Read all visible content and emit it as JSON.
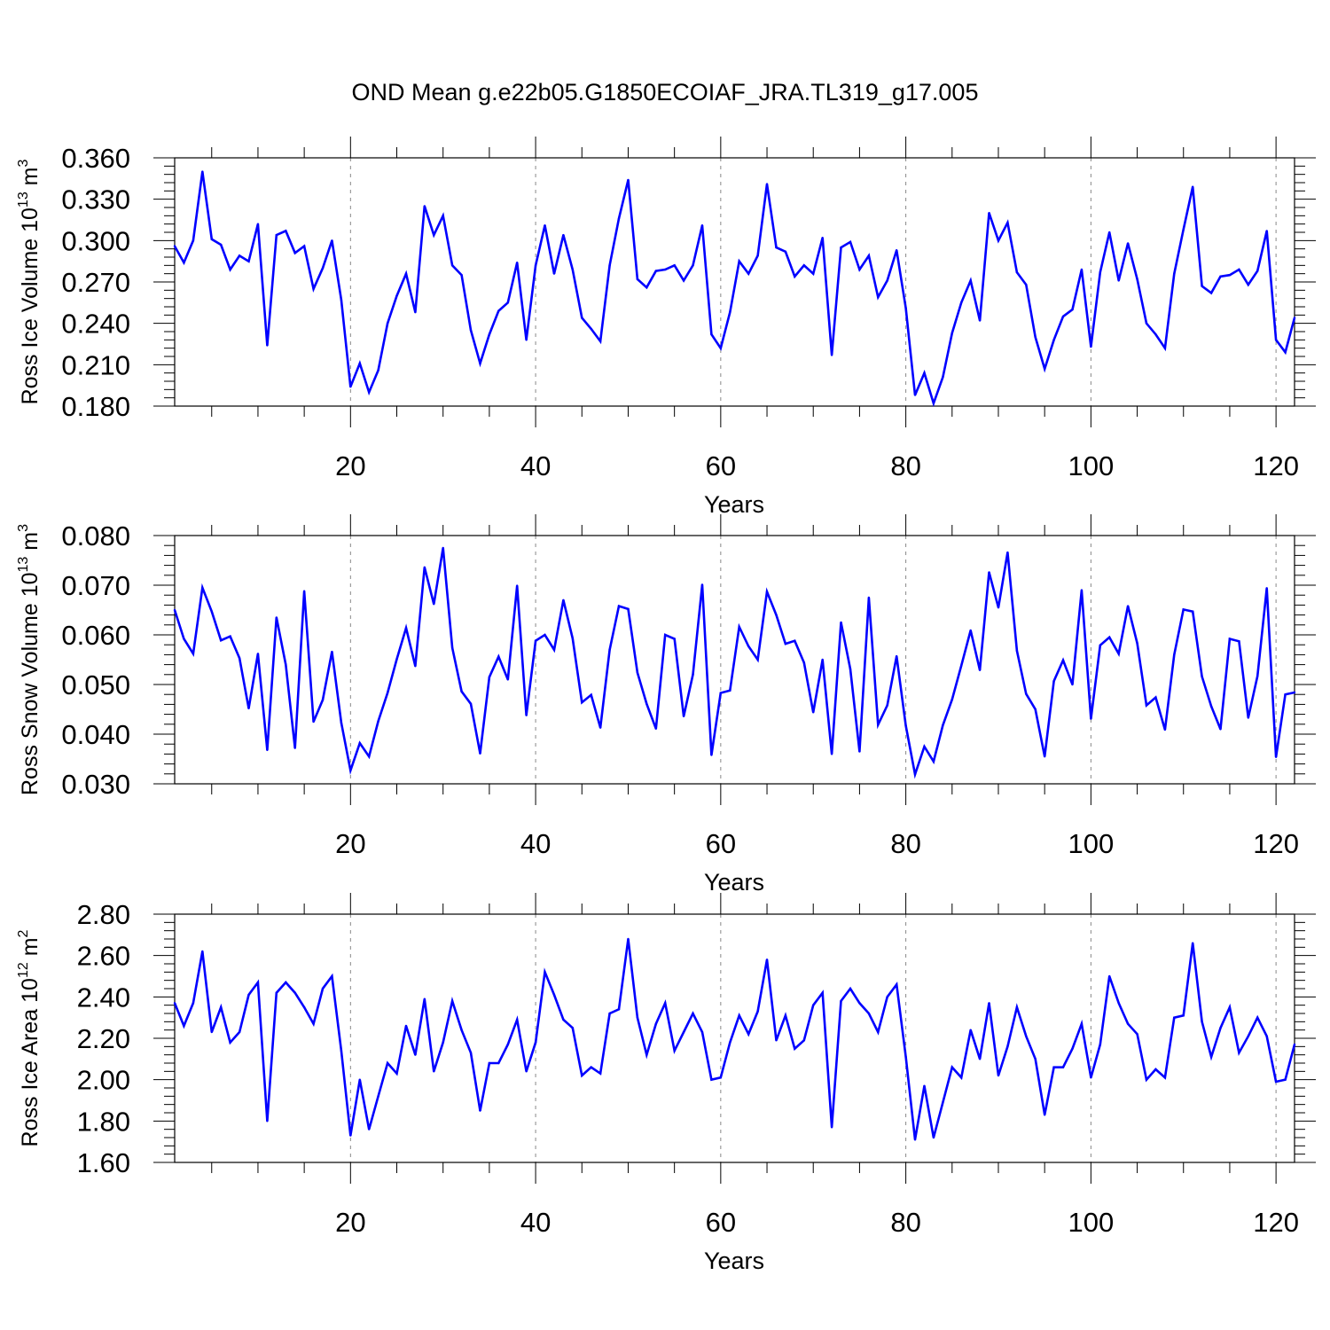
{
  "figure": {
    "title": "OND Mean g.e22b05.G1850ECOIAF_JRA.TL319_g17.005"
  },
  "chart_data": [
    {
      "type": "line",
      "ylabel": "Ross Ice Volume 10",
      "ylabel_exp": "13",
      "ylabel_unit": " m",
      "ylabel_unit_exp": "3",
      "xlabel": "Years",
      "xlim": [
        1,
        122
      ],
      "ylim": [
        0.18,
        0.36
      ],
      "yticks": [
        "0.180",
        "0.210",
        "0.240",
        "0.270",
        "0.300",
        "0.330",
        "0.360"
      ],
      "xticks": [
        "20",
        "40",
        "60",
        "80",
        "100",
        "120"
      ],
      "grid": "dashed vertical lines at major x ticks",
      "line_color": "#0000ff",
      "x_start": 1,
      "values": [
        0.296,
        0.284,
        0.3,
        0.35,
        0.301,
        0.297,
        0.279,
        0.289,
        0.285,
        0.312,
        0.224,
        0.304,
        0.307,
        0.291,
        0.296,
        0.265,
        0.28,
        0.3,
        0.257,
        0.194,
        0.211,
        0.19,
        0.206,
        0.24,
        0.26,
        0.276,
        0.248,
        0.325,
        0.304,
        0.318,
        0.282,
        0.275,
        0.235,
        0.211,
        0.232,
        0.249,
        0.255,
        0.284,
        0.228,
        0.282,
        0.311,
        0.276,
        0.304,
        0.279,
        0.244,
        0.236,
        0.227,
        0.282,
        0.316,
        0.344,
        0.272,
        0.266,
        0.278,
        0.279,
        0.282,
        0.271,
        0.282,
        0.311,
        0.232,
        0.222,
        0.248,
        0.285,
        0.276,
        0.289,
        0.341,
        0.295,
        0.292,
        0.274,
        0.282,
        0.276,
        0.302,
        0.217,
        0.295,
        0.299,
        0.279,
        0.289,
        0.259,
        0.271,
        0.293,
        0.251,
        0.188,
        0.204,
        0.182,
        0.201,
        0.233,
        0.255,
        0.271,
        0.242,
        0.32,
        0.3,
        0.313,
        0.277,
        0.268,
        0.23,
        0.207,
        0.228,
        0.245,
        0.25,
        0.279,
        0.223,
        0.277,
        0.306,
        0.271,
        0.298,
        0.272,
        0.24,
        0.232,
        0.222,
        0.276,
        0.308,
        0.339,
        0.267,
        0.262,
        0.274,
        0.275,
        0.279,
        0.268,
        0.278,
        0.307,
        0.228,
        0.219,
        0.244
      ]
    },
    {
      "type": "line",
      "ylabel": "Ross Snow Volume 10",
      "ylabel_exp": "13",
      "ylabel_unit": " m",
      "ylabel_unit_exp": "3",
      "xlabel": "Years",
      "xlim": [
        1,
        122
      ],
      "ylim": [
        0.03,
        0.08
      ],
      "yticks": [
        "0.030",
        "0.040",
        "0.050",
        "0.060",
        "0.070",
        "0.080"
      ],
      "xticks": [
        "20",
        "40",
        "60",
        "80",
        "100",
        "120"
      ],
      "grid": "dashed vertical lines at major x ticks",
      "line_color": "#0000ff",
      "x_start": 1,
      "values": [
        0.065,
        0.0592,
        0.0562,
        0.0695,
        0.0647,
        0.0589,
        0.0597,
        0.0553,
        0.0452,
        0.0562,
        0.0368,
        0.0635,
        0.054,
        0.0372,
        0.0688,
        0.0425,
        0.0469,
        0.0566,
        0.0423,
        0.0327,
        0.0382,
        0.0355,
        0.0426,
        0.0483,
        0.0551,
        0.0614,
        0.0537,
        0.0736,
        0.0662,
        0.0775,
        0.0574,
        0.0486,
        0.0461,
        0.0361,
        0.0515,
        0.0556,
        0.051,
        0.0699,
        0.0438,
        0.0588,
        0.06,
        0.057,
        0.067,
        0.0593,
        0.0464,
        0.0479,
        0.0413,
        0.057,
        0.0658,
        0.0652,
        0.0524,
        0.0461,
        0.0411,
        0.06,
        0.0592,
        0.0436,
        0.052,
        0.0701,
        0.0358,
        0.0483,
        0.0488,
        0.0616,
        0.0577,
        0.055,
        0.0687,
        0.064,
        0.0582,
        0.0588,
        0.0544,
        0.0444,
        0.055,
        0.036,
        0.0625,
        0.0531,
        0.0365,
        0.0675,
        0.0419,
        0.0458,
        0.0557,
        0.0417,
        0.0319,
        0.0375,
        0.0345,
        0.0418,
        0.047,
        0.0538,
        0.0609,
        0.0529,
        0.0726,
        0.0655,
        0.0766,
        0.0568,
        0.0481,
        0.045,
        0.0355,
        0.0507,
        0.0549,
        0.05,
        0.069,
        0.0431,
        0.0579,
        0.0595,
        0.0562,
        0.0658,
        0.0583,
        0.0458,
        0.0474,
        0.0409,
        0.056,
        0.0651,
        0.0647,
        0.0516,
        0.0456,
        0.041,
        0.0592,
        0.0587,
        0.0433,
        0.0517,
        0.0694,
        0.0354,
        0.048,
        0.0484
      ]
    },
    {
      "type": "line",
      "ylabel": "Ross Ice Area 10",
      "ylabel_exp": "12",
      "ylabel_unit": " m",
      "ylabel_unit_exp": "2",
      "xlabel": "Years",
      "xlim": [
        1,
        122
      ],
      "ylim": [
        1.6,
        2.8
      ],
      "yticks": [
        "1.60",
        "1.80",
        "2.00",
        "2.20",
        "2.40",
        "2.60",
        "2.80"
      ],
      "xticks": [
        "20",
        "40",
        "60",
        "80",
        "100",
        "120"
      ],
      "grid": "dashed vertical lines at major x ticks",
      "line_color": "#0000ff",
      "x_start": 1,
      "values": [
        2.37,
        2.26,
        2.37,
        2.62,
        2.23,
        2.35,
        2.18,
        2.23,
        2.41,
        2.47,
        1.8,
        2.42,
        2.47,
        2.42,
        2.35,
        2.27,
        2.44,
        2.5,
        2.14,
        1.73,
        2.0,
        1.76,
        1.92,
        2.08,
        2.03,
        2.26,
        2.12,
        2.39,
        2.04,
        2.18,
        2.38,
        2.24,
        2.13,
        1.85,
        2.08,
        2.08,
        2.17,
        2.29,
        2.04,
        2.18,
        2.52,
        2.41,
        2.29,
        2.25,
        2.02,
        2.06,
        2.03,
        2.32,
        2.34,
        2.68,
        2.3,
        2.12,
        2.27,
        2.37,
        2.14,
        2.23,
        2.32,
        2.23,
        2.0,
        2.01,
        2.18,
        2.31,
        2.22,
        2.33,
        2.58,
        2.19,
        2.31,
        2.15,
        2.19,
        2.36,
        2.42,
        1.77,
        2.38,
        2.44,
        2.37,
        2.32,
        2.23,
        2.4,
        2.46,
        2.11,
        1.71,
        1.97,
        1.72,
        1.89,
        2.06,
        2.01,
        2.24,
        2.1,
        2.37,
        2.02,
        2.16,
        2.35,
        2.21,
        2.1,
        1.83,
        2.06,
        2.06,
        2.15,
        2.27,
        2.01,
        2.17,
        2.5,
        2.37,
        2.27,
        2.22,
        2.0,
        2.05,
        2.01,
        2.3,
        2.31,
        2.66,
        2.28,
        2.11,
        2.25,
        2.35,
        2.13,
        2.21,
        2.3,
        2.21,
        1.99,
        2.0,
        2.17
      ]
    }
  ]
}
